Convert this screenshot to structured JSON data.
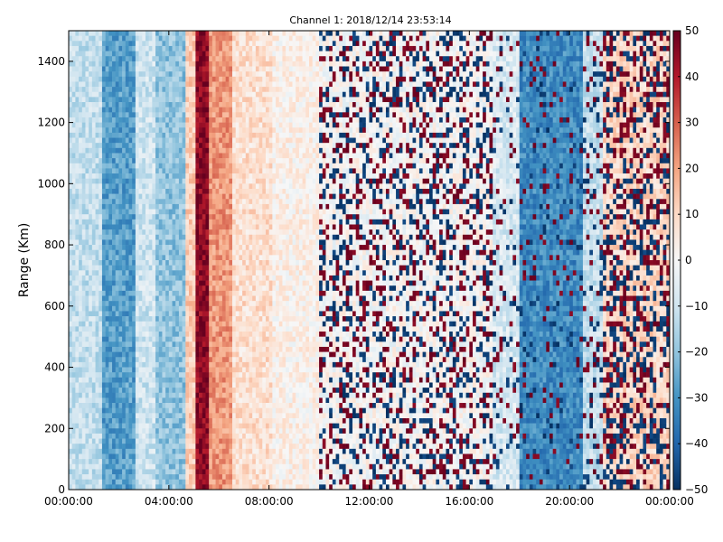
{
  "chart_data": {
    "type": "heatmap",
    "title": "Channel 1: 2018/12/14 23:53:14",
    "xlabel": "",
    "ylabel": "Range (Km)",
    "x_ticks": [
      "00:00:00",
      "04:00:00",
      "08:00:00",
      "12:00:00",
      "16:00:00",
      "20:00:00",
      "00:00:00"
    ],
    "y_ticks": [
      "0",
      "200",
      "400",
      "600",
      "800",
      "1000",
      "1200",
      "1400"
    ],
    "xlim_hours": [
      0,
      24
    ],
    "ylim": [
      0,
      1500
    ],
    "colorbar": {
      "min": -50,
      "max": 50,
      "ticks": [
        "50",
        "40",
        "30",
        "20",
        "10",
        "0",
        "−10",
        "−20",
        "−30",
        "−40",
        "−50"
      ],
      "colormap": "RdBu_r",
      "colors": [
        "#053061",
        "#2166ac",
        "#4393c3",
        "#92c5de",
        "#d1e5f0",
        "#f7f7f7",
        "#fddbc7",
        "#f4a582",
        "#d6604d",
        "#b2182b",
        "#67001f"
      ]
    },
    "bands": [
      {
        "from_hour": 0.0,
        "to_hour": 1.3,
        "level": -12
      },
      {
        "from_hour": 1.3,
        "to_hour": 2.7,
        "level": -28
      },
      {
        "from_hour": 2.7,
        "to_hour": 3.5,
        "level": -10
      },
      {
        "from_hour": 3.5,
        "to_hour": 4.7,
        "level": -20
      },
      {
        "from_hour": 4.7,
        "to_hour": 5.1,
        "level": 12
      },
      {
        "from_hour": 5.1,
        "to_hour": 5.6,
        "level": 45
      },
      {
        "from_hour": 5.6,
        "to_hour": 6.6,
        "level": 22
      },
      {
        "from_hour": 6.6,
        "to_hour": 8.2,
        "level": 8
      },
      {
        "from_hour": 8.2,
        "to_hour": 10.0,
        "level": 3
      },
      {
        "from_hour": 10.0,
        "to_hour": 17.0,
        "level": 0,
        "speckle": 0.35
      },
      {
        "from_hour": 17.0,
        "to_hour": 18.0,
        "level": -8,
        "speckle": 0.15
      },
      {
        "from_hour": 18.0,
        "to_hour": 20.5,
        "level": -32,
        "speckle": 0.1
      },
      {
        "from_hour": 20.5,
        "to_hour": 21.3,
        "level": -12,
        "speckle": 0.2
      },
      {
        "from_hour": 21.3,
        "to_hour": 24.0,
        "level": 10,
        "speckle": 0.45
      }
    ]
  }
}
